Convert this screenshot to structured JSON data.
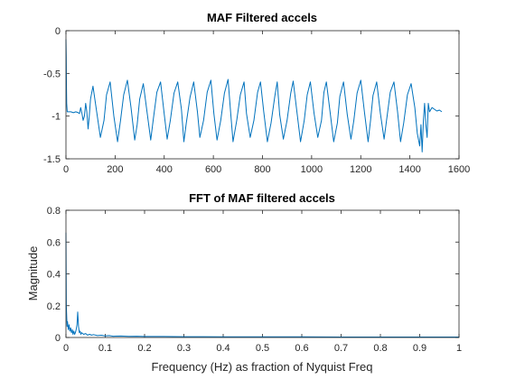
{
  "chart_data": [
    {
      "type": "line",
      "title": "MAF Filtered accels",
      "xlabel": "",
      "ylabel": "",
      "xlim": [
        0,
        1600
      ],
      "ylim": [
        -1.5,
        0
      ],
      "xticks": [
        "0",
        "200",
        "400",
        "600",
        "800",
        "1000",
        "1200",
        "1400",
        "1600"
      ],
      "yticks": [
        "0",
        "-0.5",
        "-1",
        "-1.5"
      ],
      "color": "#0072bd",
      "grid": false,
      "box": true,
      "series": [
        {
          "x": [
            0,
            1,
            2,
            3,
            5,
            10,
            20,
            30,
            40,
            50,
            55,
            60,
            65,
            70,
            75,
            80,
            85,
            90,
            95,
            100,
            110,
            125,
            140,
            155,
            165,
            180,
            195,
            210,
            222,
            235,
            250,
            265,
            280,
            290,
            300,
            315,
            330,
            345,
            355,
            370,
            385,
            400,
            412,
            425,
            440,
            455,
            470,
            480,
            490,
            505,
            520,
            535,
            545,
            560,
            575,
            590,
            602,
            615,
            630,
            645,
            660,
            670,
            680,
            695,
            710,
            725,
            735,
            750,
            765,
            780,
            792,
            805,
            820,
            835,
            850,
            860,
            870,
            885,
            900,
            915,
            925,
            940,
            955,
            970,
            982,
            995,
            1010,
            1025,
            1040,
            1050,
            1060,
            1075,
            1090,
            1105,
            1115,
            1130,
            1145,
            1160,
            1172,
            1185,
            1200,
            1215,
            1230,
            1240,
            1250,
            1265,
            1280,
            1295,
            1305,
            1320,
            1335,
            1350,
            1362,
            1375,
            1390,
            1405,
            1420,
            1430,
            1440,
            1445,
            1450,
            1455,
            1460,
            1465,
            1470,
            1475,
            1480,
            1490,
            1500,
            1510,
            1520,
            1530
          ],
          "y": [
            -0.1,
            -0.3,
            -0.6,
            -0.85,
            -0.95,
            -0.95,
            -0.95,
            -0.96,
            -0.95,
            -0.96,
            -0.97,
            -0.9,
            -0.97,
            -1.05,
            -1.0,
            -0.85,
            -0.95,
            -1.15,
            -1.0,
            -0.8,
            -0.65,
            -0.95,
            -1.25,
            -1.05,
            -0.75,
            -0.6,
            -1.0,
            -1.3,
            -1.05,
            -0.75,
            -0.58,
            -0.9,
            -1.28,
            -1.1,
            -0.8,
            -0.62,
            -0.95,
            -1.28,
            -1.05,
            -0.72,
            -0.6,
            -0.98,
            -1.27,
            -1.05,
            -0.73,
            -0.6,
            -0.92,
            -1.3,
            -1.08,
            -0.78,
            -0.6,
            -0.95,
            -1.25,
            -1.05,
            -0.72,
            -0.58,
            -0.97,
            -1.28,
            -1.05,
            -0.73,
            -0.57,
            -0.95,
            -1.3,
            -1.05,
            -0.75,
            -0.6,
            -0.97,
            -1.25,
            -1.05,
            -0.72,
            -0.6,
            -0.95,
            -1.3,
            -1.08,
            -0.77,
            -0.6,
            -0.98,
            -1.27,
            -1.05,
            -0.73,
            -0.59,
            -0.95,
            -1.3,
            -1.05,
            -0.75,
            -0.6,
            -0.97,
            -1.25,
            -1.05,
            -0.72,
            -0.6,
            -0.95,
            -1.3,
            -1.08,
            -0.77,
            -0.6,
            -0.98,
            -1.27,
            -1.05,
            -0.73,
            -0.58,
            -0.95,
            -1.3,
            -1.05,
            -0.76,
            -0.6,
            -0.97,
            -1.27,
            -1.05,
            -0.72,
            -0.6,
            -0.95,
            -1.3,
            -1.08,
            -0.75,
            -0.62,
            -0.9,
            -1.2,
            -1.35,
            -1.1,
            -1.42,
            -1.05,
            -0.85,
            -1.1,
            -1.25,
            -0.85,
            -0.95,
            -0.9,
            -0.92,
            -0.94,
            -0.93,
            -0.95
          ]
        }
      ]
    },
    {
      "type": "line",
      "title": "FFT of MAF filtered accels",
      "xlabel": "Frequency (Hz) as fraction of Nyquist Freq",
      "ylabel": "Magnitude",
      "xlim": [
        0,
        1
      ],
      "ylim": [
        0,
        0.8
      ],
      "xticks": [
        "0",
        "0.1",
        "0.2",
        "0.3",
        "0.4",
        "0.5",
        "0.6",
        "0.7",
        "0.8",
        "0.9",
        "1"
      ],
      "yticks": [
        "0.8",
        "0.6",
        "0.4",
        "0.2",
        "0"
      ],
      "color": "#0072bd",
      "grid": false,
      "box": true,
      "series": [
        {
          "x": [
            0,
            0.001,
            0.002,
            0.003,
            0.004,
            0.006,
            0.008,
            0.01,
            0.012,
            0.014,
            0.016,
            0.018,
            0.02,
            0.022,
            0.024,
            0.026,
            0.028,
            0.03,
            0.032,
            0.034,
            0.036,
            0.038,
            0.04,
            0.045,
            0.05,
            0.055,
            0.06,
            0.065,
            0.07,
            0.08,
            0.09,
            0.1,
            0.11,
            0.12,
            0.14,
            0.16,
            0.18,
            0.2,
            0.25,
            0.3,
            0.35,
            0.4,
            0.5,
            0.6,
            0.7,
            0.8,
            0.9,
            1.0
          ],
          "y": [
            0.66,
            0.2,
            0.12,
            0.07,
            0.1,
            0.05,
            0.08,
            0.04,
            0.06,
            0.03,
            0.05,
            0.02,
            0.04,
            0.02,
            0.03,
            0.05,
            0.08,
            0.16,
            0.07,
            0.03,
            0.04,
            0.02,
            0.03,
            0.02,
            0.025,
            0.015,
            0.02,
            0.015,
            0.018,
            0.012,
            0.014,
            0.01,
            0.012,
            0.008,
            0.009,
            0.007,
            0.008,
            0.006,
            0.006,
            0.005,
            0.005,
            0.004,
            0.004,
            0.004,
            0.003,
            0.003,
            0.003,
            0.003
          ]
        }
      ]
    }
  ]
}
